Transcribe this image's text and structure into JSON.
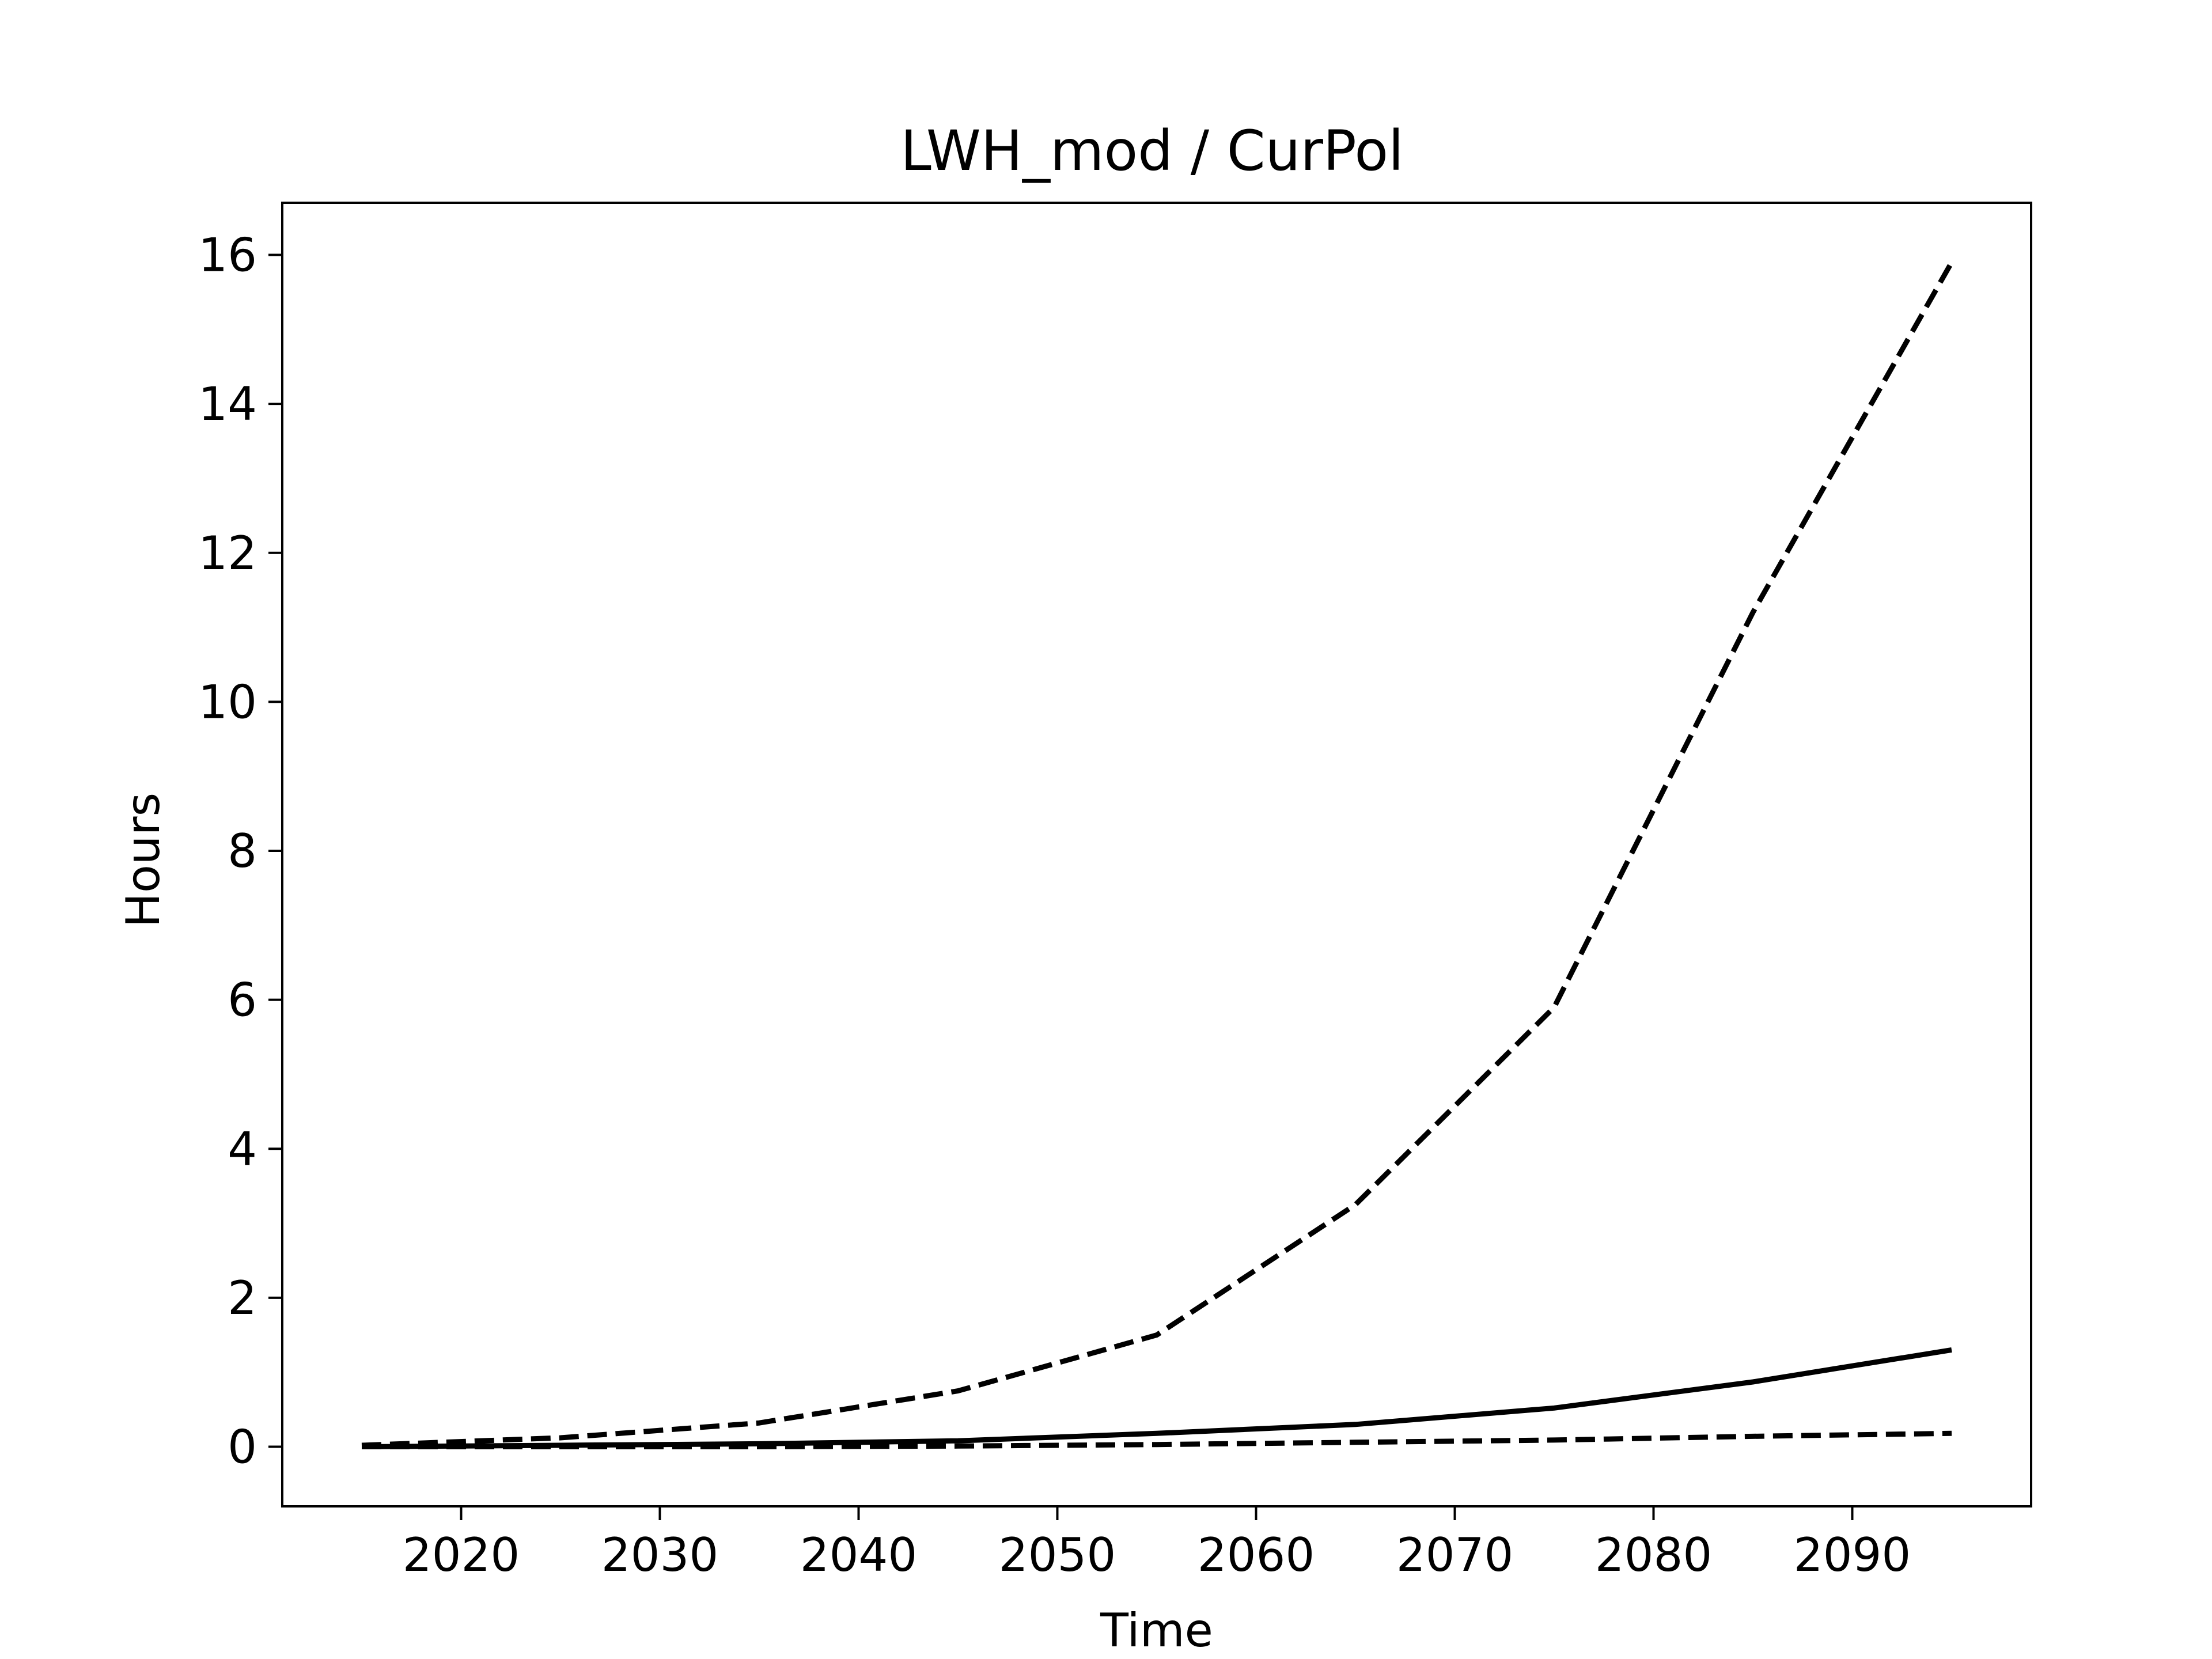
{
  "chart_data": {
    "type": "line",
    "title": "LWH_mod / CurPol",
    "xlabel": "Time",
    "ylabel": "Hours",
    "xlim": [
      2011,
      2099
    ],
    "ylim": [
      -0.8,
      16.7
    ],
    "xticks": [
      2020,
      2030,
      2040,
      2050,
      2060,
      2070,
      2080,
      2090
    ],
    "yticks": [
      0,
      2,
      4,
      6,
      8,
      10,
      12,
      14,
      16
    ],
    "grid": false,
    "x": [
      2015,
      2025,
      2035,
      2045,
      2055,
      2065,
      2075,
      2085,
      2095
    ],
    "series": [
      {
        "style": "dashed",
        "color": "#000000",
        "values": [
          0.02,
          0.12,
          0.32,
          0.75,
          1.5,
          3.25,
          5.9,
          11.2,
          15.9
        ]
      },
      {
        "style": "solid",
        "color": "#000000",
        "values": [
          0.0,
          0.02,
          0.04,
          0.08,
          0.18,
          0.3,
          0.52,
          0.87,
          1.3
        ]
      },
      {
        "style": "dashed",
        "color": "#000000",
        "values": [
          0.0,
          0.0,
          0.0,
          0.01,
          0.03,
          0.06,
          0.09,
          0.14,
          0.18
        ]
      }
    ]
  }
}
